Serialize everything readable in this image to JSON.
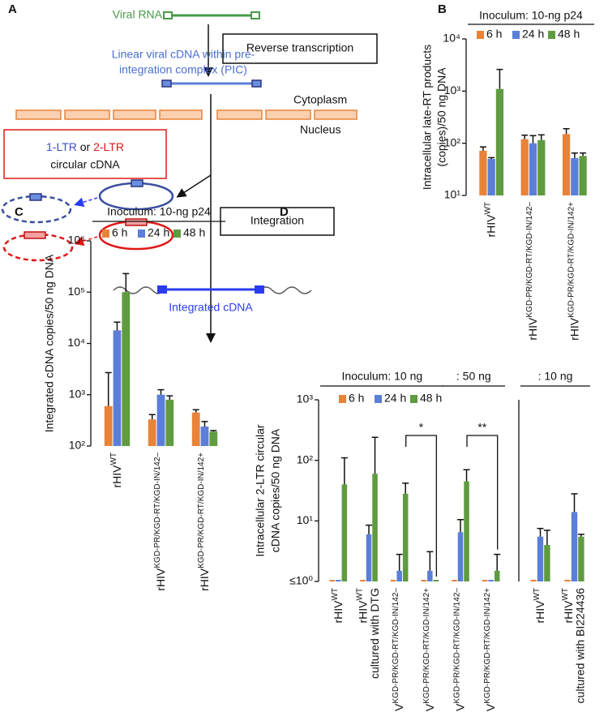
{
  "panel_a": {
    "letter": "A",
    "viral_rna": "Viral RNA",
    "linear_cdna": [
      "Linear viral cDNA within pre-",
      "integration complex (PIC)"
    ],
    "reverse_transcription": "Reverse transcription",
    "cytoplasm": "Cytoplasm",
    "nucleus": "Nucleus",
    "circular_box": {
      "ltr1": "1-LTR",
      "or": "or",
      "ltr2": "2-LTR",
      "line2": "circular cDNA"
    },
    "integration": "Integration",
    "integrated_cdna": "Integrated cDNA"
  },
  "chart_data": [
    {
      "type": "bar",
      "panel": "B",
      "log": true,
      "headers": [
        {
          "label": "Inoculum: 10-ng p24",
          "span": 3
        }
      ],
      "ylabel": [
        "Intracellular late-RT products",
        "(copies)/50 ng DNA"
      ],
      "categories": [
        "rHIV",
        "rHIV",
        "rHIV"
      ],
      "category_superscripts": [
        "WT",
        "KGD-PR/KGD-RT/KGD-IN/142–",
        "KGD-PR/KGD-RT/KGD-IN/142+"
      ],
      "legend": true,
      "series": [
        {
          "name": "6 h",
          "color": "#e8833a",
          "values": [
            72,
            120,
            150
          ],
          "errors": [
            13,
            23,
            40
          ]
        },
        {
          "name": "24 h",
          "color": "#5b7fd8",
          "values": [
            50,
            100,
            52
          ],
          "errors": [
            3,
            40,
            13
          ]
        },
        {
          "name": "48 h",
          "color": "#5f9b3f",
          "values": [
            1100,
            115,
            57
          ],
          "errors": [
            1500,
            30,
            8
          ]
        }
      ],
      "ylim": [
        10,
        10000
      ],
      "yticks": [
        {
          "value": 10,
          "label": "10¹"
        },
        {
          "value": 100,
          "label": "10²"
        },
        {
          "value": 1000,
          "label": "10³"
        },
        {
          "value": 10000,
          "label": "10⁴"
        }
      ]
    },
    {
      "type": "bar",
      "panel": "C",
      "log": true,
      "headers": [
        {
          "label": "Inoculum: 10-ng p24",
          "span": 3
        }
      ],
      "ylabel": [
        "Integrated cDNA copies/50 ng DNA"
      ],
      "categories": [
        "rHIV",
        "rHIV",
        "rHIV"
      ],
      "category_superscripts": [
        "WT",
        "KGD-PR/KGD-RT/KGD-IN/142–",
        "KGD-PR/KGD-RT/KGD-IN/142+"
      ],
      "legend": true,
      "series": [
        {
          "name": "6 h",
          "color": "#e8833a",
          "values": [
            600,
            330,
            450
          ],
          "errors": [
            2100,
            80,
            60
          ]
        },
        {
          "name": "24 h",
          "color": "#5b7fd8",
          "values": [
            18000,
            1000,
            240
          ],
          "errors": [
            8000,
            250,
            60
          ]
        },
        {
          "name": "48 h",
          "color": "#5f9b3f",
          "values": [
            100000,
            800,
            190
          ],
          "errors": [
            130000,
            150,
            10
          ]
        }
      ],
      "ylim": [
        100,
        1000000
      ],
      "yticks": [
        {
          "value": 100,
          "label": "10²"
        },
        {
          "value": 1000,
          "label": "10³"
        },
        {
          "value": 10000,
          "label": "10⁴"
        },
        {
          "value": 100000,
          "label": "10⁵"
        },
        {
          "value": 1000000,
          "label": "10⁶"
        }
      ]
    },
    {
      "type": "bar",
      "panel": "D",
      "log": true,
      "headers": [
        {
          "label": "Inoculum: 10 ng",
          "span": 4
        },
        {
          "label": ": 50 ng",
          "span": 2
        }
      ],
      "ylabel": [
        "Intracellular 2-LTR circular",
        "cDNA copies/50 ng DNA"
      ],
      "categories": [
        "rHIV",
        "rHIV",
        "rHIV",
        "rHIV",
        "rHIV",
        "rHIV"
      ],
      "category_superscripts": [
        "WT",
        "WT",
        "KGD-PR/KGD-RT/KGD-IN/142–",
        "KGD-PR/KGD-RT/KGD-IN/142+",
        "KGD-PR/KGD-RT/KGD-IN/142–",
        "KGD-PR/KGD-RT/KGD-IN/142+"
      ],
      "category_notes": [
        null,
        "cultured with DTG",
        null,
        null,
        null,
        null
      ],
      "legend": true,
      "series": [
        {
          "name": "6 h",
          "color": "#e8833a",
          "values": [
            1,
            1,
            1,
            1,
            1,
            1
          ],
          "errors": [
            null,
            null,
            null,
            null,
            null,
            null
          ]
        },
        {
          "name": "24 h",
          "color": "#5b7fd8",
          "values": [
            1,
            6,
            1.5,
            1.5,
            6.5,
            1
          ],
          "errors": [
            null,
            2.5,
            1.3,
            1.6,
            4,
            null
          ]
        },
        {
          "name": "48 h",
          "color": "#5f9b3f",
          "values": [
            40,
            60,
            28,
            1,
            45,
            1.5
          ],
          "errors": [
            70,
            180,
            14,
            null,
            25,
            1.3
          ]
        }
      ],
      "annotations": [
        {
          "text": "*",
          "between": [
            2,
            3
          ]
        },
        {
          "text": "**",
          "between": [
            4,
            5
          ]
        }
      ],
      "ylim": [
        1,
        1000
      ],
      "yticks": [
        {
          "value": 1,
          "label": "≤10⁰"
        },
        {
          "value": 10,
          "label": "10¹"
        },
        {
          "value": 100,
          "label": "10²"
        },
        {
          "value": 1000,
          "label": "10³"
        }
      ]
    },
    {
      "type": "bar",
      "log": true,
      "headers": [
        {
          "label": ": 10 ng",
          "span": 2
        }
      ],
      "categories": [
        "rHIV",
        "rHIV"
      ],
      "category_superscripts": [
        "WT",
        "WT"
      ],
      "category_notes": [
        null,
        "cultured with BI224436"
      ],
      "series": [
        {
          "color": "#e8833a",
          "values": [
            1,
            1
          ],
          "errors": [
            null,
            null
          ]
        },
        {
          "color": "#5b7fd8",
          "values": [
            5.5,
            14
          ],
          "errors": [
            2,
            14
          ]
        },
        {
          "color": "#5f9b3f",
          "values": [
            4,
            5.5
          ],
          "errors": [
            3,
            0.5
          ]
        }
      ],
      "ylim": [
        1,
        1000
      ]
    }
  ]
}
